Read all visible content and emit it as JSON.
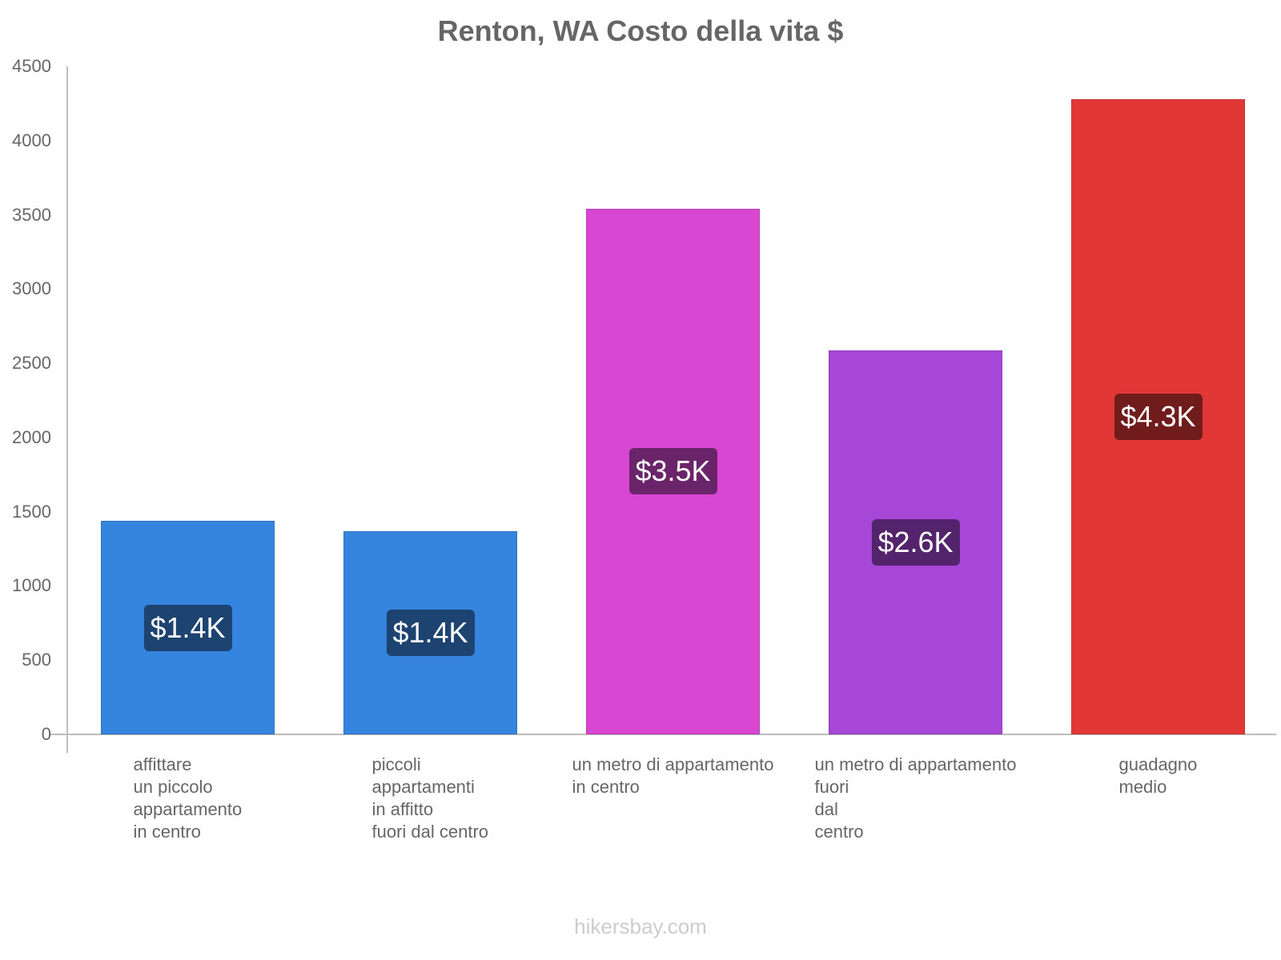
{
  "title": "Renton, WA Costo della vita $",
  "footer": "hikersbay.com",
  "chart_data": {
    "type": "bar",
    "title": "Renton, WA Costo della vita $",
    "xlabel": "",
    "ylabel": "",
    "ylim": [
      0,
      4500
    ],
    "yticks": [
      0,
      500,
      1000,
      1500,
      2000,
      2500,
      3000,
      3500,
      4000,
      4500
    ],
    "grid": false,
    "legend": null,
    "categories": [
      "affittare un piccolo appartamento in centro",
      "piccoli appartamenti in affitto fuori dal centro",
      "un metro di appartamento in centro",
      "un metro di appartamento fuori dal centro",
      "guadagno medio"
    ],
    "category_lines": [
      [
        "affittare",
        "un piccolo",
        "appartamento",
        "in centro"
      ],
      [
        "piccoli",
        "appartamenti",
        "in affitto",
        "fuori dal centro"
      ],
      [
        "un metro di appartamento",
        "in centro"
      ],
      [
        "un metro di appartamento",
        "fuori",
        "dal",
        "centro"
      ],
      [
        "guadagno",
        "medio"
      ]
    ],
    "values": [
      1438,
      1368,
      3542,
      2588,
      4280
    ],
    "value_labels": [
      "$1.4K",
      "$1.4K",
      "$3.5K",
      "$2.6K",
      "$4.3K"
    ],
    "bar_colors": [
      "#3584de",
      "#3584de",
      "#d747d2",
      "#a747d7",
      "#e13737"
    ],
    "label_colors": [
      "#1d4370",
      "#1d4370",
      "#6a246a",
      "#53246c",
      "#701c1c"
    ]
  }
}
